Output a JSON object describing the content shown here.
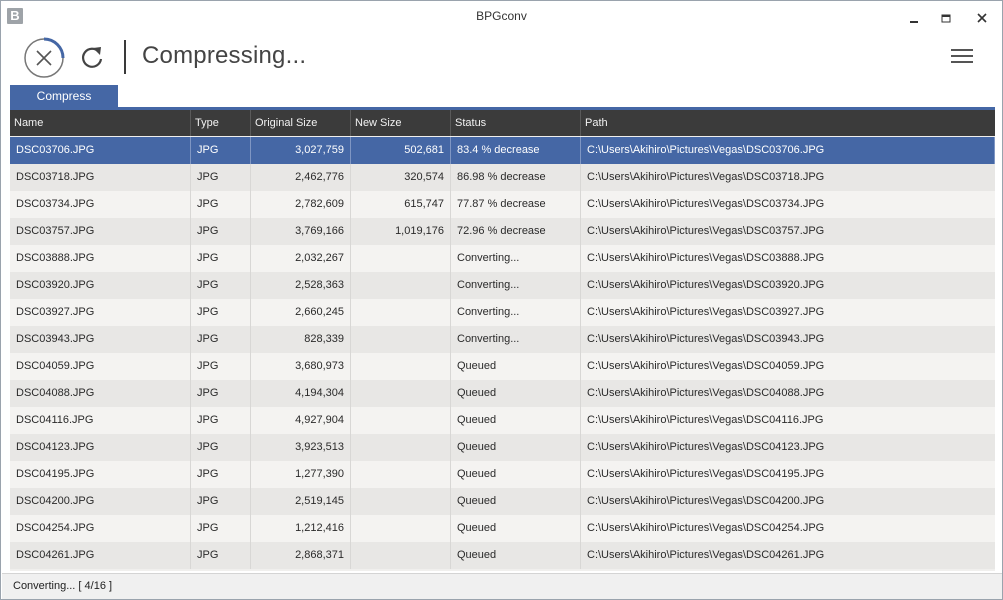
{
  "window": {
    "title": "BPGconv",
    "app_icon": "B"
  },
  "toolbar": {
    "heading": "Compressing..."
  },
  "tabs": [
    {
      "label": "Compress"
    }
  ],
  "columns": [
    "Name",
    "Type",
    "Original Size",
    "New Size",
    "Status",
    "Path"
  ],
  "rows": [
    {
      "name": "DSC03706.JPG",
      "type": "JPG",
      "original": "3,027,759",
      "new": "502,681",
      "status": "83.4 % decrease",
      "path": "C:\\Users\\Akihiro\\Pictures\\Vegas\\DSC03706.JPG"
    },
    {
      "name": "DSC03718.JPG",
      "type": "JPG",
      "original": "2,462,776",
      "new": "320,574",
      "status": "86.98 % decrease",
      "path": "C:\\Users\\Akihiro\\Pictures\\Vegas\\DSC03718.JPG"
    },
    {
      "name": "DSC03734.JPG",
      "type": "JPG",
      "original": "2,782,609",
      "new": "615,747",
      "status": "77.87 % decrease",
      "path": "C:\\Users\\Akihiro\\Pictures\\Vegas\\DSC03734.JPG"
    },
    {
      "name": "DSC03757.JPG",
      "type": "JPG",
      "original": "3,769,166",
      "new": "1,019,176",
      "status": "72.96 % decrease",
      "path": "C:\\Users\\Akihiro\\Pictures\\Vegas\\DSC03757.JPG"
    },
    {
      "name": "DSC03888.JPG",
      "type": "JPG",
      "original": "2,032,267",
      "new": "",
      "status": "Converting...",
      "path": "C:\\Users\\Akihiro\\Pictures\\Vegas\\DSC03888.JPG"
    },
    {
      "name": "DSC03920.JPG",
      "type": "JPG",
      "original": "2,528,363",
      "new": "",
      "status": "Converting...",
      "path": "C:\\Users\\Akihiro\\Pictures\\Vegas\\DSC03920.JPG"
    },
    {
      "name": "DSC03927.JPG",
      "type": "JPG",
      "original": "2,660,245",
      "new": "",
      "status": "Converting...",
      "path": "C:\\Users\\Akihiro\\Pictures\\Vegas\\DSC03927.JPG"
    },
    {
      "name": "DSC03943.JPG",
      "type": "JPG",
      "original": "828,339",
      "new": "",
      "status": "Converting...",
      "path": "C:\\Users\\Akihiro\\Pictures\\Vegas\\DSC03943.JPG"
    },
    {
      "name": "DSC04059.JPG",
      "type": "JPG",
      "original": "3,680,973",
      "new": "",
      "status": "Queued",
      "path": "C:\\Users\\Akihiro\\Pictures\\Vegas\\DSC04059.JPG"
    },
    {
      "name": "DSC04088.JPG",
      "type": "JPG",
      "original": "4,194,304",
      "new": "",
      "status": "Queued",
      "path": "C:\\Users\\Akihiro\\Pictures\\Vegas\\DSC04088.JPG"
    },
    {
      "name": "DSC04116.JPG",
      "type": "JPG",
      "original": "4,927,904",
      "new": "",
      "status": "Queued",
      "path": "C:\\Users\\Akihiro\\Pictures\\Vegas\\DSC04116.JPG"
    },
    {
      "name": "DSC04123.JPG",
      "type": "JPG",
      "original": "3,923,513",
      "new": "",
      "status": "Queued",
      "path": "C:\\Users\\Akihiro\\Pictures\\Vegas\\DSC04123.JPG"
    },
    {
      "name": "DSC04195.JPG",
      "type": "JPG",
      "original": "1,277,390",
      "new": "",
      "status": "Queued",
      "path": "C:\\Users\\Akihiro\\Pictures\\Vegas\\DSC04195.JPG"
    },
    {
      "name": "DSC04200.JPG",
      "type": "JPG",
      "original": "2,519,145",
      "new": "",
      "status": "Queued",
      "path": "C:\\Users\\Akihiro\\Pictures\\Vegas\\DSC04200.JPG"
    },
    {
      "name": "DSC04254.JPG",
      "type": "JPG",
      "original": "1,212,416",
      "new": "",
      "status": "Queued",
      "path": "C:\\Users\\Akihiro\\Pictures\\Vegas\\DSC04254.JPG"
    },
    {
      "name": "DSC04261.JPG",
      "type": "JPG",
      "original": "2,868,371",
      "new": "",
      "status": "Queued",
      "path": "C:\\Users\\Akihiro\\Pictures\\Vegas\\DSC04261.JPG"
    }
  ],
  "selected_row": 0,
  "statusbar": {
    "text": "Converting... [ 4/16 ]"
  },
  "progress": {
    "completed": 4,
    "total": 16
  },
  "colors": {
    "accent": "#4567a5",
    "header": "#3b3b3b",
    "row_alt": "#e8e7e5"
  },
  "icons": [
    "app-icon",
    "minimize-icon",
    "maximize-icon",
    "close-icon",
    "cancel-icon",
    "refresh-icon",
    "hamburger-menu-icon"
  ]
}
